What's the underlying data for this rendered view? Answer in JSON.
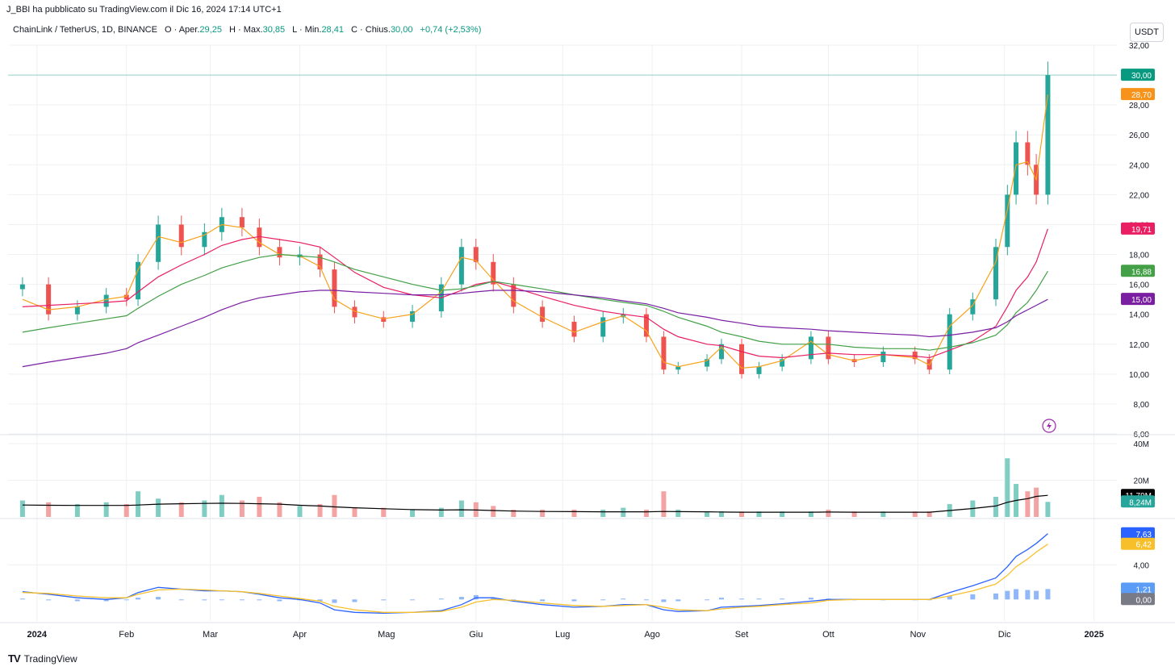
{
  "header": {
    "credit": "J_BBI ha pubblicato su TradingView.com il Dic 16, 2024 17:14 UTC+1",
    "symbol": "ChainLink / TetherUS, 1D, BINANCE",
    "open_label": "O · Aper.",
    "open": "29,25",
    "high_label": "H · Max.",
    "high": "30,85",
    "low_label": "L · Min.",
    "low": "28,41",
    "close_label": "C · Chius.",
    "close": "30,00",
    "change": "+0,74 (+2,53%)",
    "currency_button": "USDT"
  },
  "footer": {
    "brand": "TradingView",
    "brand_logo": "TV"
  },
  "chart_data": [
    {
      "type": "candlestick",
      "title": "ChainLink / TetherUS, 1D, BINANCE",
      "x": [
        "2023-12-27",
        "2024-01-05",
        "2024-01-15",
        "2024-01-25",
        "2024-02-01",
        "2024-02-05",
        "2024-02-12",
        "2024-02-20",
        "2024-02-28",
        "2024-03-05",
        "2024-03-12",
        "2024-03-18",
        "2024-03-25",
        "2024-04-01",
        "2024-04-08",
        "2024-04-13",
        "2024-04-20",
        "2024-04-30",
        "2024-05-10",
        "2024-05-20",
        "2024-05-27",
        "2024-06-01",
        "2024-06-07",
        "2024-06-14",
        "2024-06-24",
        "2024-07-05",
        "2024-07-15",
        "2024-07-22",
        "2024-07-30",
        "2024-08-05",
        "2024-08-10",
        "2024-08-20",
        "2024-08-25",
        "2024-09-01",
        "2024-09-07",
        "2024-09-15",
        "2024-09-25",
        "2024-10-01",
        "2024-10-10",
        "2024-10-20",
        "2024-10-31",
        "2024-11-05",
        "2024-11-12",
        "2024-11-20",
        "2024-11-28",
        "2024-12-02",
        "2024-12-05",
        "2024-12-09",
        "2024-12-12",
        "2024-12-16"
      ],
      "close": [
        16.0,
        14.0,
        14.5,
        15.3,
        15.0,
        17.5,
        20.0,
        18.5,
        19.5,
        20.5,
        19.8,
        18.5,
        17.8,
        18.0,
        17.0,
        14.5,
        13.8,
        13.5,
        14.2,
        16.0,
        18.5,
        17.5,
        16.0,
        14.5,
        13.5,
        12.5,
        13.8,
        14.0,
        12.5,
        10.3,
        10.5,
        11.0,
        12.0,
        10.0,
        10.5,
        11.0,
        12.5,
        11.0,
        10.8,
        11.5,
        11.0,
        10.3,
        14.0,
        15.0,
        18.5,
        22.0,
        25.5,
        24.0,
        22.0,
        30.0
      ],
      "price_ylim": [
        6,
        32
      ],
      "yticks": [
        "32,00",
        "30,00",
        "28,00",
        "26,00",
        "24,00",
        "22,00",
        "20,00",
        "18,00",
        "16,00",
        "14,00",
        "12,00",
        "10,00",
        "8,00",
        "6,00"
      ],
      "xticks": [
        "2024",
        "Feb",
        "Mar",
        "Apr",
        "Mag",
        "Giu",
        "Lug",
        "Ago",
        "Set",
        "Ott",
        "Nov",
        "Dic",
        "2025"
      ],
      "moving_averages": [
        {
          "color": "#f7a21b",
          "values": [
            15.0,
            14.3,
            14.5,
            15.0,
            15.2,
            17.0,
            19.2,
            18.8,
            19.3,
            20.0,
            19.8,
            18.8,
            18.0,
            17.9,
            17.2,
            15.0,
            14.2,
            13.7,
            14.0,
            15.5,
            17.8,
            17.6,
            16.3,
            14.9,
            13.8,
            12.8,
            13.5,
            13.9,
            12.9,
            10.8,
            10.5,
            10.9,
            11.8,
            10.4,
            10.5,
            10.9,
            12.2,
            11.3,
            10.9,
            11.3,
            11.1,
            10.6,
            13.2,
            14.6,
            17.5,
            21.0,
            24.0,
            24.2,
            23.0,
            28.7
          ]
        },
        {
          "color": "#e91e63",
          "values": [
            14.5,
            14.6,
            14.7,
            14.8,
            14.9,
            15.5,
            16.5,
            17.3,
            18.0,
            18.6,
            19.0,
            19.2,
            19.0,
            18.8,
            18.5,
            17.8,
            16.8,
            15.8,
            15.3,
            15.1,
            15.6,
            16.0,
            16.2,
            15.8,
            15.2,
            14.6,
            14.2,
            14.0,
            13.8,
            13.0,
            12.5,
            12.0,
            11.9,
            11.5,
            11.2,
            11.1,
            11.3,
            11.4,
            11.3,
            11.3,
            11.2,
            11.1,
            11.6,
            12.2,
            13.2,
            14.5,
            15.6,
            16.5,
            17.5,
            19.71
          ]
        },
        {
          "color": "#43a047",
          "values": [
            12.8,
            13.1,
            13.4,
            13.7,
            13.9,
            14.4,
            15.2,
            16.0,
            16.6,
            17.1,
            17.5,
            17.8,
            18.0,
            17.9,
            17.8,
            17.5,
            17.0,
            16.5,
            16.0,
            15.6,
            15.7,
            15.9,
            16.2,
            16.0,
            15.7,
            15.3,
            15.0,
            14.8,
            14.6,
            14.2,
            13.8,
            13.2,
            12.8,
            12.5,
            12.2,
            12.0,
            12.0,
            12.0,
            11.8,
            11.7,
            11.7,
            11.6,
            11.8,
            12.1,
            12.6,
            13.3,
            14.1,
            14.8,
            15.6,
            16.88
          ]
        },
        {
          "color": "#7b1fa2",
          "values": [
            10.5,
            10.8,
            11.1,
            11.4,
            11.7,
            12.1,
            12.6,
            13.2,
            13.8,
            14.3,
            14.8,
            15.1,
            15.3,
            15.5,
            15.6,
            15.6,
            15.5,
            15.4,
            15.3,
            15.3,
            15.4,
            15.5,
            15.6,
            15.6,
            15.5,
            15.3,
            15.1,
            14.9,
            14.7,
            14.4,
            14.1,
            13.8,
            13.6,
            13.4,
            13.2,
            13.1,
            13.0,
            12.9,
            12.8,
            12.7,
            12.6,
            12.5,
            12.6,
            12.8,
            13.1,
            13.5,
            13.9,
            14.3,
            14.6,
            15.0
          ]
        }
      ],
      "last_labels": [
        {
          "value": "30,00",
          "price": 30.0,
          "color": "#089981"
        },
        {
          "value": "28,70",
          "price": 28.7,
          "color": "#f7931a"
        },
        {
          "value": "19,71",
          "price": 19.71,
          "color": "#e91e63"
        },
        {
          "value": "16,88",
          "price": 16.88,
          "color": "#43a047"
        },
        {
          "value": "15,00",
          "price": 15.0,
          "color": "#7b1fa2"
        }
      ]
    },
    {
      "type": "bar",
      "title": "",
      "x": [
        "2023-12-27",
        "2024-01-05",
        "2024-01-15",
        "2024-01-25",
        "2024-02-01",
        "2024-02-05",
        "2024-02-12",
        "2024-02-20",
        "2024-02-28",
        "2024-03-05",
        "2024-03-12",
        "2024-03-18",
        "2024-03-25",
        "2024-04-01",
        "2024-04-08",
        "2024-04-13",
        "2024-04-20",
        "2024-04-30",
        "2024-05-10",
        "2024-05-20",
        "2024-05-27",
        "2024-06-01",
        "2024-06-07",
        "2024-06-14",
        "2024-06-24",
        "2024-07-05",
        "2024-07-15",
        "2024-07-22",
        "2024-07-30",
        "2024-08-05",
        "2024-08-10",
        "2024-08-20",
        "2024-08-25",
        "2024-09-01",
        "2024-09-07",
        "2024-09-15",
        "2024-09-25",
        "2024-10-01",
        "2024-10-10",
        "2024-10-20",
        "2024-10-31",
        "2024-11-05",
        "2024-11-12",
        "2024-11-20",
        "2024-11-28",
        "2024-12-02",
        "2024-12-05",
        "2024-12-09",
        "2024-12-12",
        "2024-12-16"
      ],
      "volume_millions": [
        9,
        8,
        7,
        8,
        7,
        14,
        10,
        8,
        9,
        12,
        9,
        11,
        8,
        6,
        7,
        12,
        5,
        5,
        4,
        5,
        9,
        8,
        6,
        4,
        4,
        4,
        4,
        5,
        4,
        14,
        4,
        3,
        3,
        3,
        3,
        3,
        3,
        4,
        3,
        3,
        3,
        3,
        7,
        9,
        11,
        32,
        18,
        14,
        16,
        8.24
      ],
      "volume_ma_millions": [
        6.5,
        6.4,
        6.3,
        6.3,
        6.3,
        6.5,
        7.0,
        7.2,
        7.4,
        7.5,
        7.4,
        7.2,
        7.0,
        6.4,
        6.0,
        5.5,
        5.0,
        4.5,
        4.0,
        3.8,
        3.9,
        3.8,
        3.5,
        3.2,
        3.0,
        2.9,
        2.8,
        2.8,
        2.8,
        3.0,
        2.9,
        2.8,
        2.7,
        2.6,
        2.6,
        2.6,
        2.6,
        2.7,
        2.6,
        2.6,
        2.6,
        2.6,
        3.5,
        4.6,
        6.0,
        8.0,
        9.0,
        10.0,
        11.2,
        11.79
      ],
      "ylim_millions": [
        0,
        44
      ],
      "yticks": [
        "40M",
        "20M"
      ],
      "last_labels": [
        {
          "value": "11,79M",
          "level": 11.79,
          "color": "#000000"
        },
        {
          "value": "8,24M",
          "level": 8.24,
          "color": "#26a69a"
        }
      ]
    },
    {
      "type": "line",
      "title": "",
      "x": [
        "2023-12-27",
        "2024-01-05",
        "2024-01-15",
        "2024-01-25",
        "2024-02-01",
        "2024-02-05",
        "2024-02-12",
        "2024-02-20",
        "2024-02-28",
        "2024-03-05",
        "2024-03-12",
        "2024-03-18",
        "2024-03-25",
        "2024-04-01",
        "2024-04-08",
        "2024-04-13",
        "2024-04-20",
        "2024-04-30",
        "2024-05-10",
        "2024-05-20",
        "2024-05-27",
        "2024-06-01",
        "2024-06-07",
        "2024-06-14",
        "2024-06-24",
        "2024-07-05",
        "2024-07-15",
        "2024-07-22",
        "2024-07-30",
        "2024-08-05",
        "2024-08-10",
        "2024-08-20",
        "2024-08-25",
        "2024-09-01",
        "2024-09-07",
        "2024-09-15",
        "2024-09-25",
        "2024-10-01",
        "2024-10-10",
        "2024-10-20",
        "2024-10-31",
        "2024-11-05",
        "2024-11-12",
        "2024-11-20",
        "2024-11-28",
        "2024-12-02",
        "2024-12-05",
        "2024-12-09",
        "2024-12-12",
        "2024-12-16"
      ],
      "macd": [
        0.9,
        0.6,
        0.2,
        0.0,
        0.2,
        0.8,
        1.4,
        1.2,
        1.0,
        1.0,
        0.9,
        0.6,
        0.2,
        0.0,
        -0.4,
        -1.2,
        -1.5,
        -1.6,
        -1.5,
        -1.3,
        -0.6,
        0.2,
        0.2,
        -0.2,
        -0.6,
        -0.9,
        -0.8,
        -0.6,
        -0.6,
        -1.2,
        -1.4,
        -1.3,
        -0.9,
        -0.8,
        -0.7,
        -0.5,
        -0.2,
        0.0,
        0.0,
        0.0,
        0.0,
        0.0,
        0.8,
        1.6,
        2.5,
        3.8,
        5.0,
        5.8,
        6.5,
        7.63
      ],
      "signal": [
        0.8,
        0.7,
        0.4,
        0.2,
        0.2,
        0.6,
        1.1,
        1.2,
        1.1,
        1.0,
        0.9,
        0.7,
        0.4,
        0.1,
        -0.2,
        -0.8,
        -1.2,
        -1.5,
        -1.5,
        -1.4,
        -0.9,
        -0.3,
        0.0,
        -0.1,
        -0.4,
        -0.7,
        -0.8,
        -0.7,
        -0.6,
        -0.9,
        -1.2,
        -1.3,
        -1.1,
        -0.9,
        -0.8,
        -0.6,
        -0.4,
        -0.1,
        0.0,
        0.0,
        0.0,
        0.0,
        0.4,
        1.0,
        1.8,
        2.8,
        3.8,
        4.7,
        5.5,
        6.42
      ],
      "histogram": [
        0.1,
        -0.1,
        -0.2,
        -0.2,
        0.0,
        0.2,
        0.3,
        0.0,
        -0.1,
        0.0,
        0.0,
        -0.1,
        -0.2,
        -0.1,
        -0.2,
        -0.4,
        -0.3,
        -0.1,
        0.0,
        0.1,
        0.3,
        0.5,
        0.2,
        -0.1,
        -0.2,
        -0.2,
        0.0,
        0.1,
        0.0,
        -0.3,
        -0.2,
        0.0,
        0.2,
        0.1,
        0.1,
        0.1,
        0.2,
        0.1,
        0.0,
        0.0,
        0.0,
        0.0,
        0.4,
        0.6,
        0.7,
        1.0,
        1.2,
        1.1,
        1.0,
        1.21
      ],
      "ylim": [
        -2.5,
        9.2
      ],
      "yticks": [
        "4,00"
      ],
      "last_labels": [
        {
          "value": "7,63",
          "level": 7.63,
          "color": "#2962ff"
        },
        {
          "value": "6,42",
          "level": 6.42,
          "color": "#f7c02b"
        },
        {
          "value": "1,21",
          "level": 1.21,
          "color": "#5b9cf6"
        },
        {
          "value": "0,00",
          "level": 0.0,
          "color": "#787b86"
        }
      ]
    }
  ]
}
